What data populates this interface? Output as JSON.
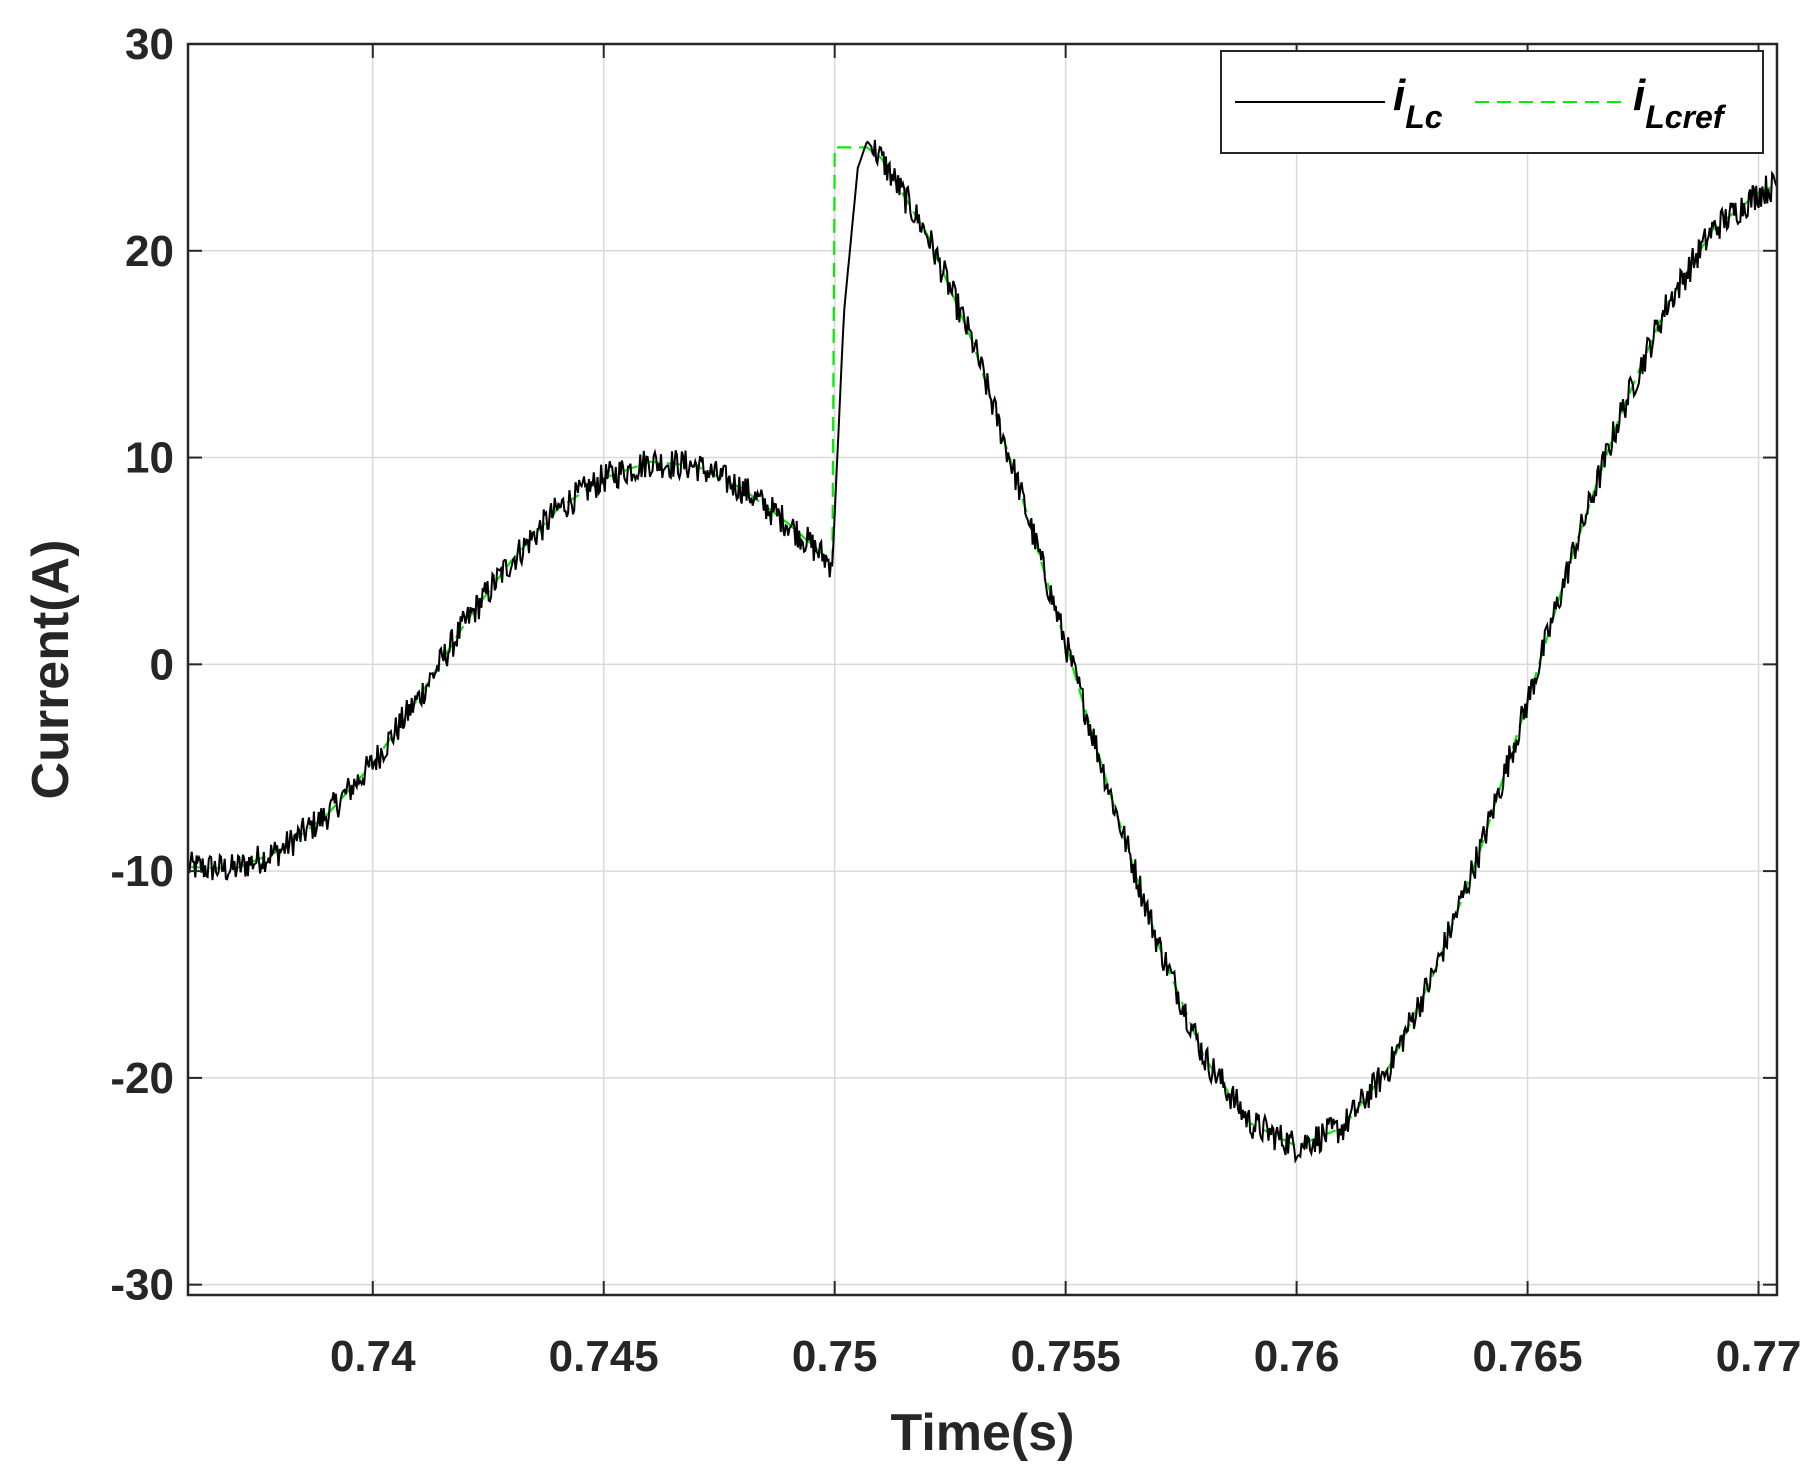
{
  "chart_data": {
    "type": "line",
    "xlabel": "Time(s)",
    "ylabel": "Current(A)",
    "xlim": [
      0.736,
      0.7704
    ],
    "ylim": [
      -30.5,
      30
    ],
    "xticks": [
      0.74,
      0.745,
      0.75,
      0.755,
      0.76,
      0.765,
      0.77
    ],
    "xtick_labels": [
      "0.74",
      "0.745",
      "0.75",
      "0.755",
      "0.76",
      "0.765",
      "0.77"
    ],
    "yticks": [
      -30,
      -20,
      -10,
      0,
      10,
      20,
      30
    ],
    "ytick_labels": [
      "-30",
      "-20",
      "-10",
      "0",
      "10",
      "20",
      "30"
    ],
    "grid": true,
    "legend": {
      "placement": "top-right"
    },
    "series": [
      {
        "name": "i_Lc",
        "label_main": "i",
        "label_sub": "Lc",
        "color": "#000000",
        "style": "solid",
        "noisy": true,
        "x": [
          0.736,
          0.737,
          0.738,
          0.739,
          0.74,
          0.741,
          0.742,
          0.743,
          0.744,
          0.745,
          0.746,
          0.747,
          0.748,
          0.749,
          0.74995,
          0.7502,
          0.7505,
          0.7507,
          0.751,
          0.752,
          0.753,
          0.754,
          0.755,
          0.756,
          0.757,
          0.758,
          0.759,
          0.76,
          0.761,
          0.762,
          0.763,
          0.764,
          0.765,
          0.766,
          0.767,
          0.768,
          0.769,
          0.77,
          0.7704
        ],
        "y": [
          -9.8,
          -9.9,
          -9.0,
          -7.3,
          -4.8,
          -1.6,
          2.0,
          5.0,
          7.5,
          9.0,
          9.8,
          9.6,
          8.5,
          6.8,
          4.8,
          17.0,
          24.0,
          25.3,
          24.5,
          20.8,
          15.5,
          8.5,
          1.0,
          -6.5,
          -13.5,
          -19.0,
          -22.2,
          -23.3,
          -22.4,
          -19.5,
          -14.8,
          -8.8,
          -1.8,
          5.5,
          12.0,
          17.3,
          21.0,
          22.8,
          23.2
        ]
      },
      {
        "name": "i_Lcref",
        "label_main": "i",
        "label_sub": "Lcref",
        "color": "#00ee00",
        "style": "dashed",
        "noisy": false,
        "x": [
          0.736,
          0.737,
          0.738,
          0.739,
          0.74,
          0.741,
          0.742,
          0.743,
          0.744,
          0.745,
          0.746,
          0.747,
          0.748,
          0.749,
          0.74995,
          0.75,
          0.7507,
          0.751,
          0.752,
          0.753,
          0.754,
          0.755,
          0.756,
          0.757,
          0.758,
          0.759,
          0.76,
          0.761,
          0.762,
          0.763,
          0.764,
          0.765,
          0.766,
          0.767,
          0.768,
          0.769,
          0.77,
          0.7704
        ],
        "y": [
          -9.8,
          -9.9,
          -9.0,
          -7.3,
          -4.8,
          -1.6,
          2.0,
          5.0,
          7.5,
          9.0,
          9.8,
          9.6,
          8.5,
          6.8,
          4.9,
          25.0,
          25.0,
          24.5,
          20.8,
          15.5,
          8.5,
          1.0,
          -6.5,
          -13.5,
          -19.0,
          -22.2,
          -23.3,
          -22.4,
          -19.5,
          -14.8,
          -8.8,
          -1.8,
          5.5,
          12.0,
          17.3,
          21.0,
          22.8,
          23.2
        ]
      }
    ]
  }
}
